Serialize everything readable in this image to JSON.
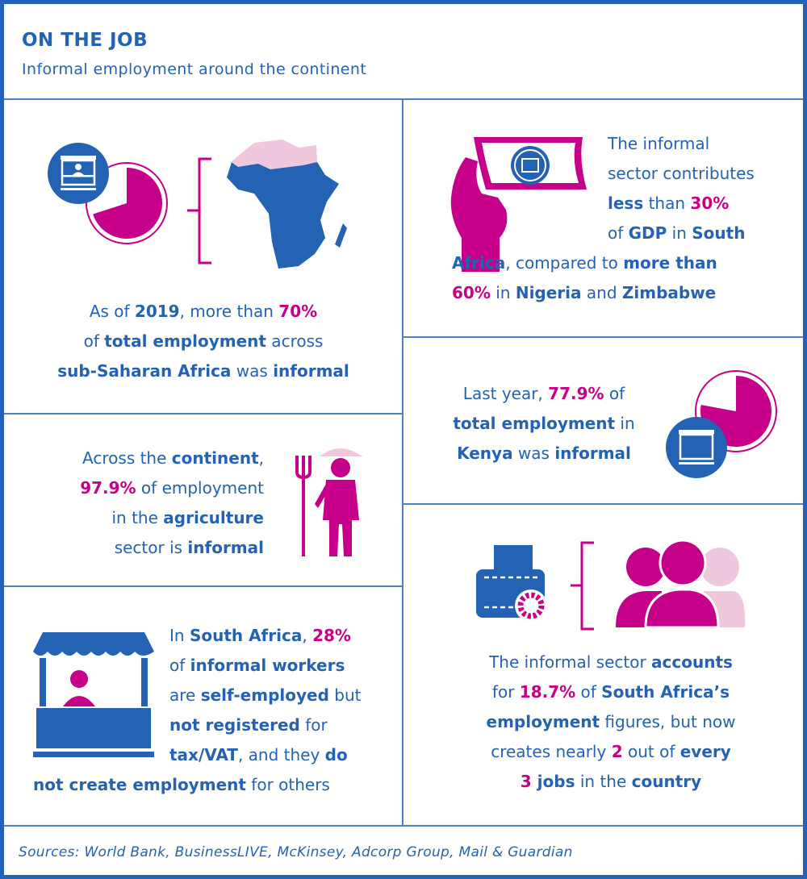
{
  "header": {
    "title": "ON THE JOB",
    "subtitle": "Informal employment around the continent"
  },
  "colors": {
    "blue": "#2462b3",
    "magenta": "#c7008a",
    "light_pink": "#efc8de"
  },
  "panels": {
    "ssa": {
      "icons": [
        "market-stall-icon",
        "pie-chart-icon",
        "africa-map-icon"
      ],
      "pie_share_percent": 70,
      "lines": [
        [
          {
            "t": "As of ",
            "s": ""
          },
          {
            "t": "2019",
            "s": "b"
          },
          {
            "t": ", more than ",
            "s": ""
          },
          {
            "t": "70%",
            "s": "m"
          }
        ],
        [
          {
            "t": "of ",
            "s": ""
          },
          {
            "t": "total employment",
            "s": "b"
          },
          {
            "t": " across",
            "s": ""
          }
        ],
        [
          {
            "t": "sub-Saharan Africa",
            "s": "b"
          },
          {
            "t": " was ",
            "s": ""
          },
          {
            "t": "informal",
            "s": "b"
          }
        ]
      ]
    },
    "gdp": {
      "icons": [
        "hand-holding-banknote-icon"
      ],
      "lines": [
        [
          {
            "t": "The informal",
            "s": ""
          }
        ],
        [
          {
            "t": "sector contributes",
            "s": ""
          }
        ],
        [
          {
            "t": "less",
            "s": "b"
          },
          {
            "t": " than ",
            "s": ""
          },
          {
            "t": "30%",
            "s": "m"
          }
        ],
        [
          {
            "t": "of ",
            "s": ""
          },
          {
            "t": "GDP",
            "s": "b"
          },
          {
            "t": " in ",
            "s": ""
          },
          {
            "t": "South",
            "s": "b"
          }
        ],
        [
          {
            "t": "Africa",
            "s": "b"
          },
          {
            "t": ", compared to ",
            "s": ""
          },
          {
            "t": "more than",
            "s": "b"
          }
        ],
        [
          {
            "t": "60%",
            "s": "m"
          },
          {
            "t": " in ",
            "s": ""
          },
          {
            "t": "Nigeria",
            "s": "b"
          },
          {
            "t": " and ",
            "s": ""
          },
          {
            "t": "Zimbabwe",
            "s": "b"
          }
        ]
      ]
    },
    "agri": {
      "icons": [
        "farmer-with-pitchfork-icon"
      ],
      "lines": [
        [
          {
            "t": "Across the ",
            "s": ""
          },
          {
            "t": "continent",
            "s": "b"
          },
          {
            "t": ",",
            "s": ""
          }
        ],
        [
          {
            "t": "97.9%",
            "s": "m"
          },
          {
            "t": " of employment",
            "s": ""
          }
        ],
        [
          {
            "t": "in the ",
            "s": ""
          },
          {
            "t": "agriculture",
            "s": "b"
          }
        ],
        [
          {
            "t": "sector is ",
            "s": ""
          },
          {
            "t": "informal",
            "s": "b"
          }
        ]
      ]
    },
    "kenya": {
      "icons": [
        "pie-chart-icon",
        "market-stall-icon"
      ],
      "pie_share_percent": 77.9,
      "lines": [
        [
          {
            "t": "Last year, ",
            "s": ""
          },
          {
            "t": "77.9%",
            "s": "m"
          },
          {
            "t": " of",
            "s": ""
          }
        ],
        [
          {
            "t": "total employment",
            "s": "b"
          },
          {
            "t": " in",
            "s": ""
          }
        ],
        [
          {
            "t": "Kenya",
            "s": "b"
          },
          {
            "t": " was ",
            "s": ""
          },
          {
            "t": "informal",
            "s": "b"
          }
        ]
      ]
    },
    "self": {
      "icons": [
        "market-stall-icon"
      ],
      "lines": [
        [
          {
            "t": "In ",
            "s": ""
          },
          {
            "t": "South Africa",
            "s": "b"
          },
          {
            "t": ", ",
            "s": ""
          },
          {
            "t": "28%",
            "s": "m"
          }
        ],
        [
          {
            "t": "of ",
            "s": ""
          },
          {
            "t": "informal workers",
            "s": "b"
          }
        ],
        [
          {
            "t": "are ",
            "s": ""
          },
          {
            "t": "self-employed",
            "s": "b"
          },
          {
            "t": " but",
            "s": ""
          }
        ],
        [
          {
            "t": "not registered",
            "s": "b"
          },
          {
            "t": " for",
            "s": ""
          }
        ],
        [
          {
            "t": "tax/VAT",
            "s": "b"
          },
          {
            "t": ", and they ",
            "s": ""
          },
          {
            "t": "do",
            "s": "b"
          }
        ],
        [
          {
            "t": "not create employment",
            "s": "b"
          },
          {
            "t": " for others",
            "s": ""
          }
        ]
      ]
    },
    "jobs": {
      "icons": [
        "wallet-with-gear-icon",
        "people-group-icon"
      ],
      "lines": [
        [
          {
            "t": "The informal sector ",
            "s": ""
          },
          {
            "t": "accounts",
            "s": "b"
          }
        ],
        [
          {
            "t": "for ",
            "s": ""
          },
          {
            "t": "18.7%",
            "s": "m"
          },
          {
            "t": " of ",
            "s": ""
          },
          {
            "t": "South Africa’s",
            "s": "b"
          }
        ],
        [
          {
            "t": "employment",
            "s": "b"
          },
          {
            "t": " figures, but now",
            "s": ""
          }
        ],
        [
          {
            "t": "creates nearly ",
            "s": ""
          },
          {
            "t": "2",
            "s": "m"
          },
          {
            "t": " out of ",
            "s": ""
          },
          {
            "t": "every",
            "s": "b"
          }
        ],
        [
          {
            "t": "3",
            "s": "m"
          },
          {
            "t": " jobs",
            "s": "b"
          },
          {
            "t": " in the ",
            "s": ""
          },
          {
            "t": "country",
            "s": "b"
          }
        ]
      ]
    }
  },
  "footer": {
    "sources": "Sources: World Bank, BusinessLIVE, McKinsey, Adcorp Group, Mail & Guardian"
  }
}
